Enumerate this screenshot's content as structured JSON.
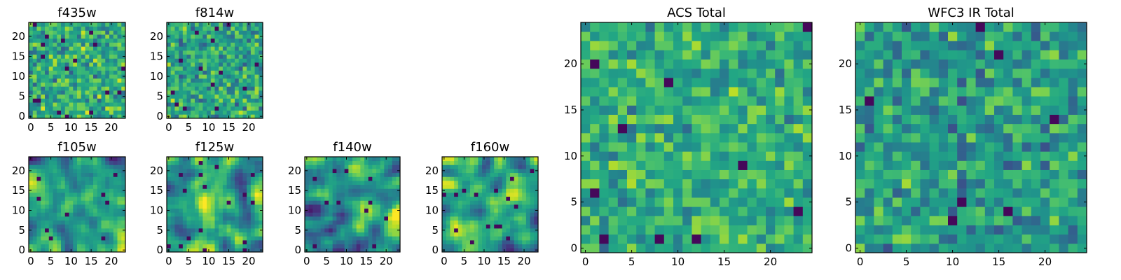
{
  "figure": {
    "colormap": "viridis",
    "colors": {
      "dark": "#440154",
      "mid": "#21918c",
      "bright": "#fde725",
      "frame": "#000000",
      "background": "#ffffff"
    }
  },
  "chart_data": [
    {
      "type": "heatmap",
      "title": "f435w",
      "grid_size": [
        24,
        24
      ],
      "xlim": [
        0,
        24
      ],
      "ylim": [
        0,
        24
      ],
      "xticks": [
        0,
        5,
        10,
        15,
        20
      ],
      "yticks": [
        0,
        5,
        10,
        15,
        20
      ],
      "xtick_labels": [
        "0",
        "5",
        "10",
        "15",
        "20"
      ],
      "ytick_labels": [
        "0",
        "5",
        "10",
        "15",
        "20"
      ],
      "grid": false,
      "note_values": "pixel noise, mostly bright (yellow-green)",
      "mean_level": 0.62,
      "spread": 0.22,
      "texture": "fine",
      "seed": 11
    },
    {
      "type": "heatmap",
      "title": "f814w",
      "grid_size": [
        24,
        24
      ],
      "xlim": [
        0,
        24
      ],
      "ylim": [
        0,
        24
      ],
      "xticks": [
        0,
        5,
        10,
        15,
        20
      ],
      "yticks": [
        0,
        5,
        10,
        15,
        20
      ],
      "xtick_labels": [
        "0",
        "5",
        "10",
        "15",
        "20"
      ],
      "ytick_labels": [
        "0",
        "5",
        "10",
        "15",
        "20"
      ],
      "grid": false,
      "mean_level": 0.58,
      "spread": 0.22,
      "texture": "fine",
      "seed": 23
    },
    {
      "type": "heatmap",
      "title": "f105w",
      "grid_size": [
        24,
        24
      ],
      "xlim": [
        0,
        24
      ],
      "ylim": [
        0,
        24
      ],
      "xticks": [
        0,
        5,
        10,
        15,
        20
      ],
      "yticks": [
        0,
        5,
        10,
        15,
        20
      ],
      "xtick_labels": [
        "0",
        "5",
        "10",
        "15",
        "20"
      ],
      "ytick_labels": [
        "0",
        "5",
        "10",
        "15",
        "20"
      ],
      "grid": false,
      "mean_level": 0.6,
      "spread": 0.2,
      "texture": "smooth",
      "seed": 37
    },
    {
      "type": "heatmap",
      "title": "f125w",
      "grid_size": [
        24,
        24
      ],
      "xlim": [
        0,
        24
      ],
      "ylim": [
        0,
        24
      ],
      "xticks": [
        0,
        5,
        10,
        15,
        20
      ],
      "yticks": [
        0,
        5,
        10,
        15,
        20
      ],
      "xtick_labels": [
        "0",
        "5",
        "10",
        "15",
        "20"
      ],
      "ytick_labels": [
        "0",
        "5",
        "10",
        "15",
        "20"
      ],
      "grid": false,
      "mean_level": 0.57,
      "spread": 0.22,
      "texture": "smooth",
      "seed": 41
    },
    {
      "type": "heatmap",
      "title": "f140w",
      "grid_size": [
        24,
        24
      ],
      "xlim": [
        0,
        24
      ],
      "ylim": [
        0,
        24
      ],
      "xticks": [
        0,
        5,
        10,
        15,
        20
      ],
      "yticks": [
        0,
        5,
        10,
        15,
        20
      ],
      "xtick_labels": [
        "0",
        "5",
        "10",
        "15",
        "20"
      ],
      "ytick_labels": [
        "0",
        "5",
        "10",
        "15",
        "20"
      ],
      "grid": false,
      "mean_level": 0.52,
      "spread": 0.24,
      "texture": "smooth",
      "seed": 53
    },
    {
      "type": "heatmap",
      "title": "f160w",
      "grid_size": [
        24,
        24
      ],
      "xlim": [
        0,
        24
      ],
      "ylim": [
        0,
        24
      ],
      "xticks": [
        0,
        5,
        10,
        15,
        20
      ],
      "yticks": [
        0,
        5,
        10,
        15,
        20
      ],
      "xtick_labels": [
        "0",
        "5",
        "10",
        "15",
        "20"
      ],
      "ytick_labels": [
        "0",
        "5",
        "10",
        "15",
        "20"
      ],
      "grid": false,
      "mean_level": 0.6,
      "spread": 0.22,
      "texture": "smooth",
      "seed": 67
    },
    {
      "type": "heatmap",
      "title": "ACS Total",
      "grid_size": [
        25,
        25
      ],
      "xlim": [
        0,
        25
      ],
      "ylim": [
        0,
        25
      ],
      "xticks": [
        0,
        5,
        10,
        15,
        20
      ],
      "yticks": [
        0,
        5,
        10,
        15,
        20
      ],
      "xtick_labels": [
        "0",
        "5",
        "10",
        "15",
        "20"
      ],
      "ytick_labels": [
        "0",
        "5",
        "10",
        "15",
        "20"
      ],
      "grid": false,
      "mean_level": 0.62,
      "spread": 0.18,
      "texture": "coarse",
      "seed": 79
    },
    {
      "type": "heatmap",
      "title": "WFC3 IR Total",
      "grid_size": [
        25,
        25
      ],
      "xlim": [
        0,
        25
      ],
      "ylim": [
        0,
        25
      ],
      "xticks": [
        0,
        5,
        10,
        15,
        20
      ],
      "yticks": [
        0,
        5,
        10,
        15,
        20
      ],
      "xtick_labels": [
        "0",
        "5",
        "10",
        "15",
        "20"
      ],
      "ytick_labels": [
        "0",
        "5",
        "10",
        "15",
        "20"
      ],
      "grid": false,
      "mean_level": 0.55,
      "spread": 0.2,
      "texture": "coarse",
      "seed": 97
    }
  ]
}
